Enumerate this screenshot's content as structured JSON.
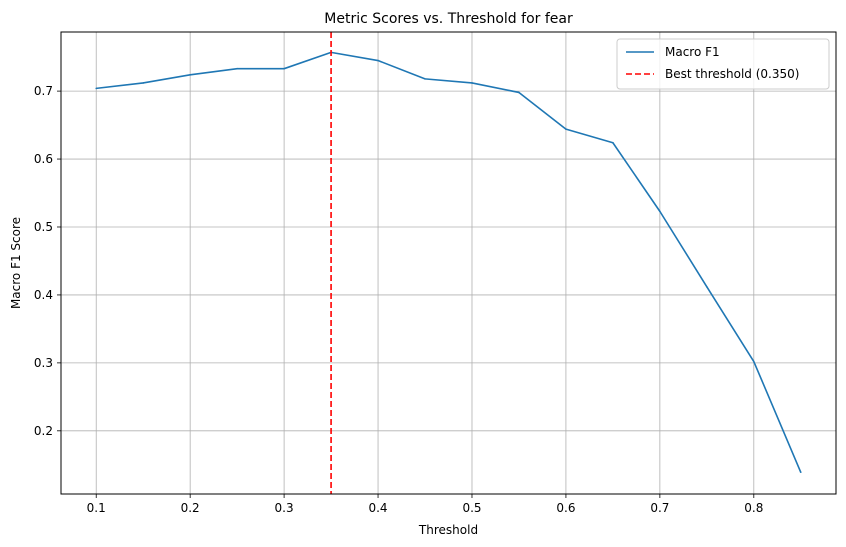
{
  "chart_data": {
    "type": "line",
    "title": "Metric Scores vs. Threshold for fear",
    "xlabel": "Threshold",
    "ylabel": "Macro F1 Score",
    "xlim": [
      0.0625,
      0.8875
    ],
    "ylim": [
      0.107,
      0.787
    ],
    "xticks": [
      0.1,
      0.2,
      0.3,
      0.4,
      0.5,
      0.6,
      0.7,
      0.8
    ],
    "yticks": [
      0.2,
      0.3,
      0.4,
      0.5,
      0.6,
      0.7
    ],
    "grid": true,
    "legend_position": "top-right",
    "series": [
      {
        "name": "Macro F1",
        "color": "#1f77b4",
        "style": "solid",
        "x": [
          0.1,
          0.15,
          0.2,
          0.25,
          0.3,
          0.35,
          0.4,
          0.45,
          0.5,
          0.55,
          0.6,
          0.65,
          0.7,
          0.75,
          0.8,
          0.85
        ],
        "y": [
          0.704,
          0.712,
          0.724,
          0.733,
          0.733,
          0.757,
          0.745,
          0.718,
          0.712,
          0.698,
          0.644,
          0.624,
          0.523,
          0.412,
          0.302,
          0.139
        ]
      }
    ],
    "vlines": [
      {
        "name": "Best threshold (0.350)",
        "x": 0.35,
        "color": "#ff0000",
        "style": "dashed"
      }
    ]
  }
}
